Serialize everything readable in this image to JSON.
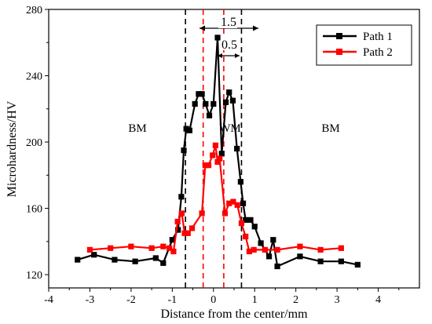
{
  "chart_data": {
    "type": "line",
    "xlabel": "Distance from the center/mm",
    "ylabel": "Microhardness/HV",
    "xlim": [
      -4,
      5
    ],
    "ylim": [
      112,
      280
    ],
    "xticks": [
      -4,
      -3,
      -2,
      -1,
      0,
      1,
      2,
      3,
      4
    ],
    "yticks": [
      120,
      160,
      200,
      240,
      280
    ],
    "grid": false,
    "legend_position": "top-right",
    "series": [
      {
        "name": "Path 1",
        "color": "#000000",
        "marker": "square",
        "x": [
          -3.3,
          -2.9,
          -2.4,
          -1.9,
          -1.4,
          -1.22,
          -1.0,
          -0.86,
          -0.78,
          -0.72,
          -0.66,
          -0.58,
          -0.45,
          -0.36,
          -0.28,
          -0.19,
          -0.1,
          0.0,
          0.1,
          0.2,
          0.3,
          0.38,
          0.47,
          0.57,
          0.66,
          0.72,
          0.78,
          0.9,
          1.0,
          1.15,
          1.35,
          1.45,
          1.55,
          2.1,
          2.6,
          3.1,
          3.5
        ],
        "y": [
          129,
          132,
          129,
          128,
          130,
          127,
          141,
          147,
          167,
          195,
          208,
          207,
          223,
          229,
          229,
          223,
          216,
          223,
          263,
          193,
          224,
          230,
          225,
          196,
          176,
          163,
          153,
          153,
          149,
          139,
          131,
          141,
          125,
          131,
          128,
          128,
          126
        ]
      },
      {
        "name": "Path 2",
        "color": "#ff0000",
        "marker": "square",
        "x": [
          -3.0,
          -2.5,
          -2.0,
          -1.5,
          -1.22,
          -1.07,
          -0.97,
          -0.87,
          -0.77,
          -0.7,
          -0.62,
          -0.52,
          -0.28,
          -0.2,
          -0.12,
          -0.02,
          0.05,
          0.1,
          0.15,
          0.28,
          0.38,
          0.48,
          0.58,
          0.68,
          0.78,
          0.87,
          0.98,
          1.25,
          1.55,
          2.1,
          2.6,
          3.1
        ],
        "y": [
          135,
          136,
          137,
          136,
          137,
          136,
          134,
          152,
          157,
          145,
          145,
          148,
          157,
          186,
          186,
          192,
          198,
          188,
          190,
          157,
          163,
          164,
          162,
          151,
          143,
          134,
          135,
          135,
          135,
          137,
          135,
          136
        ]
      }
    ],
    "annotations": {
      "region_left": "BM",
      "region_center": "WM",
      "region_right": "BM",
      "outer_width": "1.5",
      "inner_width": "0.5"
    },
    "guide_lines": {
      "outer_x": [
        -0.68,
        0.68
      ],
      "inner_x": [
        -0.25,
        0.25
      ]
    }
  }
}
